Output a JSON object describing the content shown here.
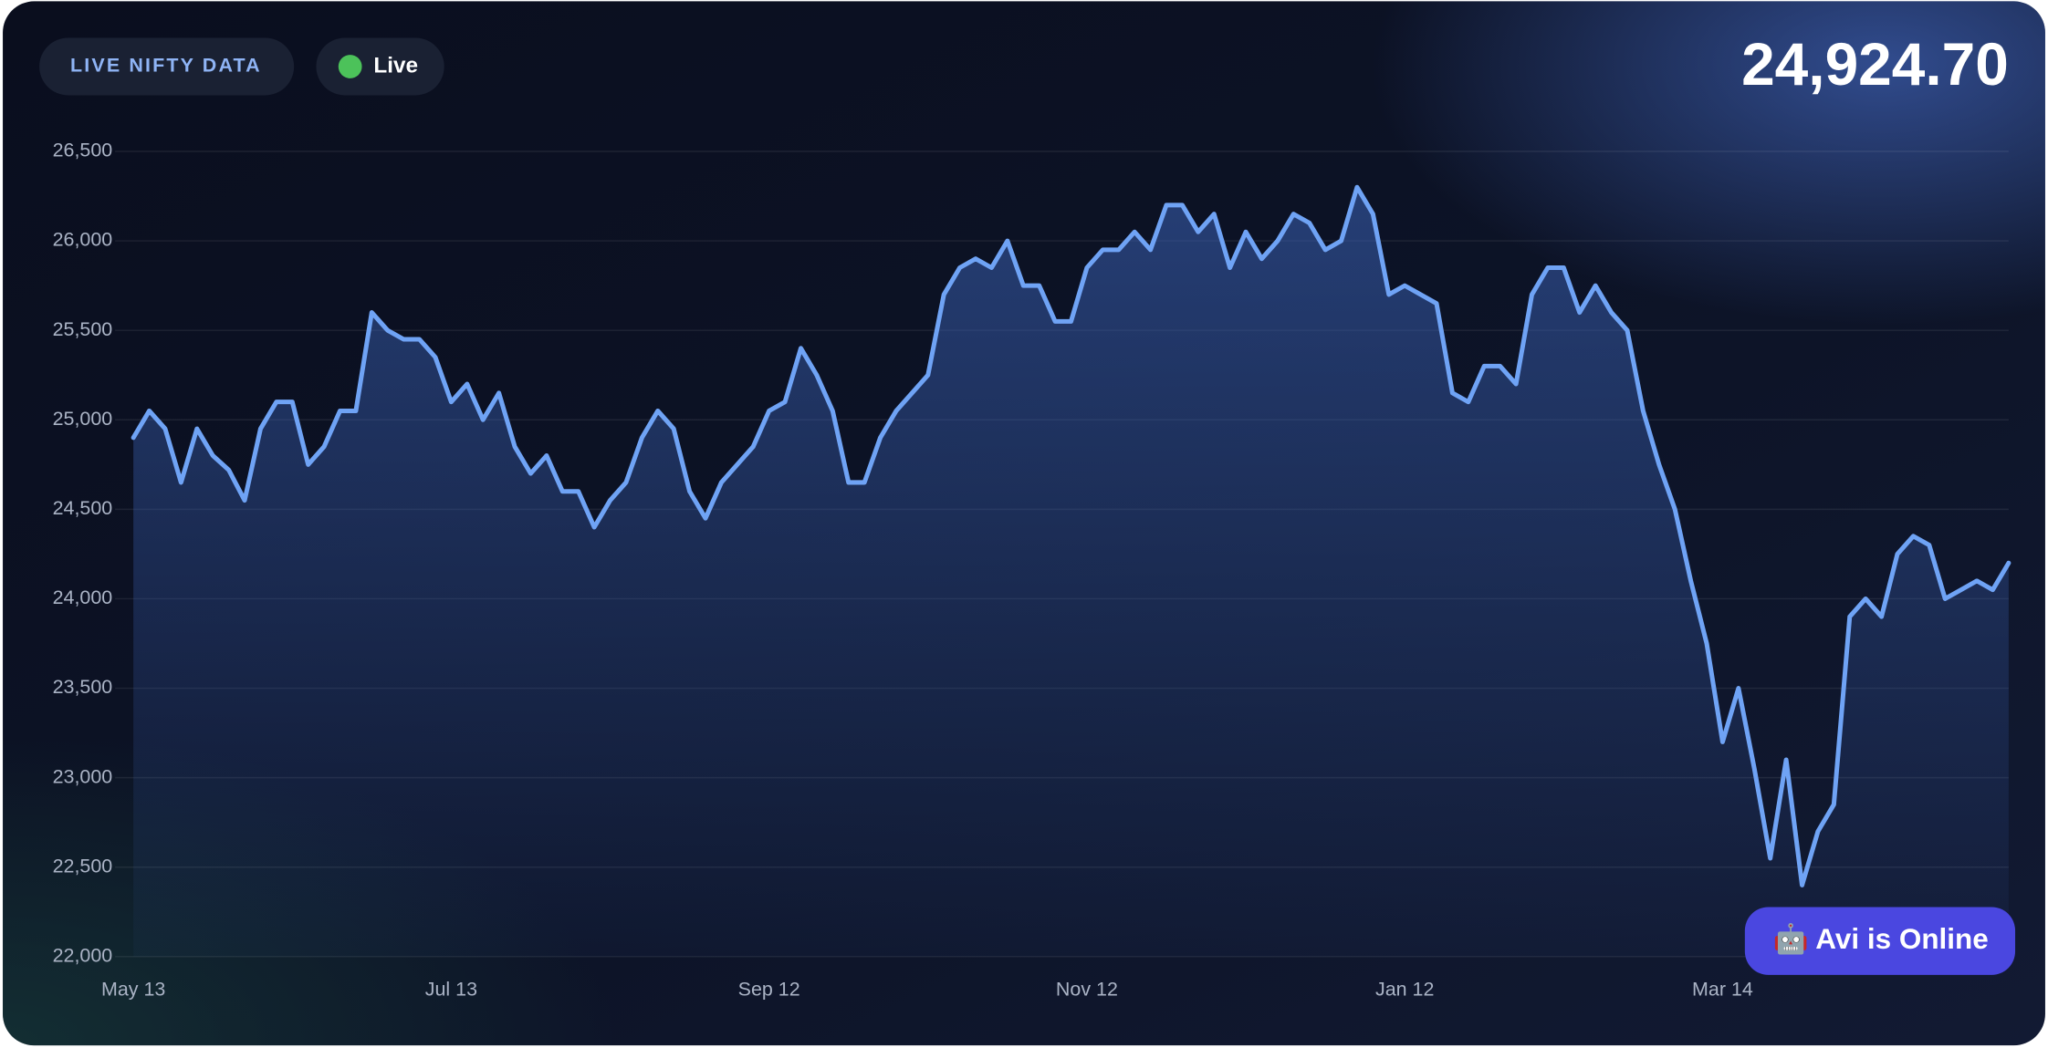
{
  "header": {
    "badge": "LIVE NIFTY DATA",
    "status": "Live",
    "price": "24,924.70"
  },
  "chat_button": "🤖 Avi is Online",
  "chart_data": {
    "type": "line",
    "categories": [
      "May 13",
      null,
      null,
      null,
      null,
      null,
      null,
      null,
      null,
      null,
      null,
      null,
      null,
      null,
      null,
      null,
      null,
      null,
      null,
      null,
      "Jul 13",
      null,
      null,
      null,
      null,
      null,
      null,
      null,
      null,
      null,
      null,
      null,
      null,
      null,
      null,
      null,
      null,
      null,
      null,
      null,
      "Sep 12",
      null,
      null,
      null,
      null,
      null,
      null,
      null,
      null,
      null,
      null,
      null,
      null,
      null,
      null,
      null,
      null,
      null,
      null,
      null,
      "Nov 12",
      null,
      null,
      null,
      null,
      null,
      null,
      null,
      null,
      null,
      null,
      null,
      null,
      null,
      null,
      null,
      null,
      null,
      null,
      null,
      "Jan 12",
      null,
      null,
      null,
      null,
      null,
      null,
      null,
      null,
      null,
      null,
      null,
      null,
      null,
      null,
      null,
      null,
      null,
      null,
      null,
      "Mar 14",
      null,
      null,
      null,
      null,
      null,
      null,
      null,
      null,
      null,
      null,
      null,
      null,
      null,
      null,
      null,
      null,
      null,
      null
    ],
    "series": [
      {
        "color": "#6fa3f5",
        "values": [
          24900,
          25050,
          24950,
          24650,
          24950,
          24800,
          24720,
          24550,
          24950,
          25100,
          25100,
          24750,
          24850,
          25050,
          25050,
          25600,
          25500,
          25450,
          25450,
          25350,
          25100,
          25200,
          25000,
          25150,
          24850,
          24700,
          24800,
          24600,
          24600,
          24400,
          24550,
          24650,
          24900,
          25050,
          24950,
          24600,
          24450,
          24650,
          24750,
          24850,
          25050,
          25100,
          25400,
          25250,
          25050,
          24650,
          24650,
          24900,
          25050,
          25150,
          25250,
          25700,
          25850,
          25900,
          25850,
          26000,
          25750,
          25750,
          25550,
          25550,
          25850,
          25950,
          25950,
          26050,
          25950,
          26200,
          26200,
          26050,
          26150,
          25850,
          26050,
          25900,
          26000,
          26150,
          26100,
          25950,
          26000,
          26300,
          26150,
          25700,
          25750,
          25700,
          25650,
          25150,
          25100,
          25300,
          25300,
          25200,
          25700,
          25850,
          25850,
          25600,
          25750,
          25600,
          25500,
          25050,
          24750,
          24500,
          24100,
          23750,
          23200,
          23500,
          23050,
          22550,
          23100,
          22400,
          22700,
          22850,
          23900,
          24000,
          23900,
          24250,
          24350,
          24300,
          24000,
          24050,
          24100,
          24050,
          24200
        ]
      }
    ],
    "ylim": [
      22000,
      26500
    ],
    "yticks": [
      {
        "value": 22000,
        "label": "22,000"
      },
      {
        "value": 22500,
        "label": "22,500"
      },
      {
        "value": 23000,
        "label": "23,000"
      },
      {
        "value": 23500,
        "label": "23,500"
      },
      {
        "value": 24000,
        "label": "24,000"
      },
      {
        "value": 24500,
        "label": "24,500"
      },
      {
        "value": 25000,
        "label": "25,000"
      },
      {
        "value": 25500,
        "label": "25,500"
      },
      {
        "value": 26000,
        "label": "26,000"
      },
      {
        "value": 26500,
        "label": "26,500"
      }
    ],
    "grid": true
  }
}
